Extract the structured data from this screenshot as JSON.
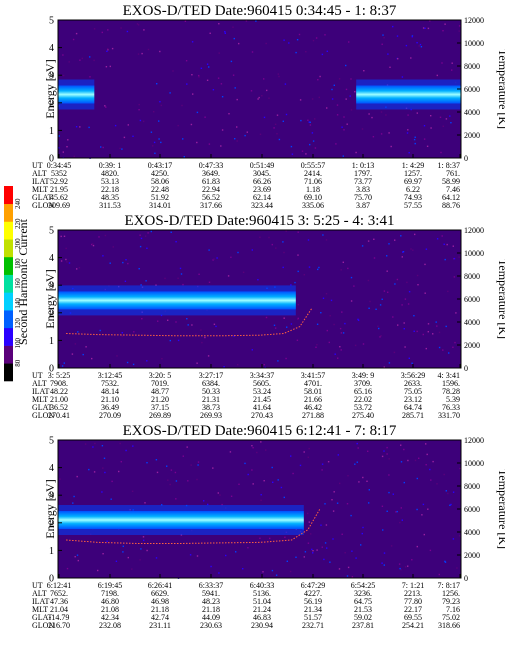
{
  "colorbar": {
    "label": "Second Harmonic Current",
    "ticks": [
      "80",
      "100",
      "120",
      "140",
      "160",
      "180",
      "200",
      "220",
      "240"
    ],
    "colors": [
      "#000000",
      "#5a007a",
      "#2a00ff",
      "#0060ff",
      "#00d0ff",
      "#00e0a0",
      "#00c000",
      "#c0e000",
      "#ffff00",
      "#ffa000",
      "#ff0000"
    ]
  },
  "chart_data": [
    {
      "type": "heatmap",
      "title": "EXOS-D/TED   Date:960415   0:34:45 - 1: 8:37",
      "ylabel": "Energy [eV]",
      "y2label": "Temperature [K]",
      "ylim": [
        0,
        5
      ],
      "y2lim": [
        0,
        12000
      ],
      "yticks": [
        "0",
        "1",
        "2",
        "3",
        "4",
        "5"
      ],
      "y2ticks": [
        "0",
        "2000",
        "4000",
        "6000",
        "8000",
        "10000",
        "12000"
      ],
      "band_energy": 2.3,
      "band_ranges": [
        [
          0.0,
          0.09
        ],
        [
          0.74,
          1.0
        ]
      ],
      "table": {
        "row_labels": [
          "UT",
          "ALT",
          "ILAT",
          "MLT",
          "GLAT",
          "GLON"
        ],
        "columns": [
          [
            "0:34:45",
            "5352",
            "52.92",
            "21.95",
            "45.62",
            "309.69"
          ],
          [
            "0:39: 1",
            "4820.",
            "53.13",
            "22.18",
            "48.35",
            "311.53"
          ],
          [
            "0:43:17",
            "4250.",
            "58.06",
            "22.48",
            "51.92",
            "314.01"
          ],
          [
            "0:47:33",
            "3649.",
            "61.83",
            "22.94",
            "56.52",
            "317.66"
          ],
          [
            "0:51:49",
            "3045.",
            "66.26",
            "23.69",
            "62.14",
            "323.44"
          ],
          [
            "0:55:57",
            "2414.",
            "71.06",
            "1.18",
            "69.10",
            "335.06"
          ],
          [
            "1: 0:13",
            "1797.",
            "73.77",
            "3.83",
            "75.70",
            "3.87"
          ],
          [
            "1: 4:29",
            "1257.",
            "69.97",
            "6.22",
            "74.93",
            "57.55"
          ],
          [
            "1: 8:37",
            "761.",
            "58.99",
            "7.46",
            "64.12",
            "88.76"
          ]
        ]
      }
    },
    {
      "type": "heatmap",
      "title": "EXOS-D/TED   Date:960415   3: 5:25 - 4: 3:41",
      "ylabel": "Energy [eV]",
      "y2label": "Temperature [K]",
      "ylim": [
        0,
        5
      ],
      "y2lim": [
        0,
        12000
      ],
      "yticks": [
        "0",
        "1",
        "2",
        "3",
        "4",
        "5"
      ],
      "y2ticks": [
        "0",
        "2000",
        "4000",
        "6000",
        "8000",
        "10000",
        "12000"
      ],
      "band_energy": 2.45,
      "band_ranges": [
        [
          0.0,
          0.59
        ]
      ],
      "temperature_curve": {
        "x": [
          0.02,
          0.1,
          0.2,
          0.3,
          0.4,
          0.5,
          0.56,
          0.6,
          0.63
        ],
        "temperature": [
          3000,
          2900,
          2850,
          2800,
          2800,
          2850,
          3000,
          3600,
          5200
        ]
      },
      "table": {
        "row_labels": [
          "UT",
          "ALT",
          "ILAT",
          "MLT",
          "GLAT",
          "GLON"
        ],
        "columns": [
          [
            "3: 5:25",
            "7908.",
            "48.22",
            "21.00",
            "36.52",
            "270.41"
          ],
          [
            "3:12:45",
            "7532.",
            "48.14",
            "21.10",
            "36.49",
            "270.09"
          ],
          [
            "3:20: 5",
            "7019.",
            "48.77",
            "21.20",
            "37.15",
            "269.89"
          ],
          [
            "3:27:17",
            "6384.",
            "50.33",
            "21.31",
            "38.73",
            "269.93"
          ],
          [
            "3:34:37",
            "5605.",
            "53.24",
            "21.45",
            "41.64",
            "270.43"
          ],
          [
            "3:41:57",
            "4701.",
            "58.01",
            "21.66",
            "46.42",
            "271.88"
          ],
          [
            "3:49: 9",
            "3709.",
            "65.16",
            "22.02",
            "53.72",
            "275.40"
          ],
          [
            "3:56:29",
            "2633.",
            "75.05",
            "23.12",
            "64.74",
            "285.71"
          ],
          [
            "4: 3:41",
            "1596.",
            "78.28",
            "5.39",
            "76.33",
            "331.70"
          ]
        ]
      }
    },
    {
      "type": "heatmap",
      "title": "EXOS-D/TED   Date:960415   6:12:41 - 7: 8:17",
      "ylabel": "Energy [eV]",
      "y2label": "Temperature [K]",
      "ylim": [
        0,
        5
      ],
      "y2lim": [
        0,
        12000
      ],
      "yticks": [
        "0",
        "1",
        "2",
        "3",
        "4",
        "5"
      ],
      "y2ticks": [
        "0",
        "2000",
        "4000",
        "6000",
        "8000",
        "10000",
        "12000"
      ],
      "band_energy": 2.1,
      "band_ranges": [
        [
          0.0,
          0.61
        ]
      ],
      "temperature_curve": {
        "x": [
          0.02,
          0.1,
          0.2,
          0.3,
          0.4,
          0.5,
          0.58,
          0.62,
          0.65
        ],
        "temperature": [
          3300,
          3100,
          3000,
          3000,
          3050,
          3100,
          3300,
          4200,
          6000
        ]
      },
      "table": {
        "row_labels": [
          "UT",
          "ALT",
          "ILAT",
          "MLT",
          "GLAT",
          "GLON"
        ],
        "columns": [
          [
            "6:12:41",
            "7652.",
            "47.36",
            "21.04",
            "-14.79",
            "216.70"
          ],
          [
            "6:19:45",
            "7198.",
            "46.80",
            "21.08",
            "42.34",
            "232.08"
          ],
          [
            "6:26:41",
            "6629.",
            "46.98",
            "21.18",
            "42.74",
            "231.11"
          ],
          [
            "6:33:37",
            "5941.",
            "48.23",
            "21.18",
            "44.09",
            "230.63"
          ],
          [
            "6:40:33",
            "5136.",
            "51.04",
            "21.24",
            "46.83",
            "230.94"
          ],
          [
            "6:47:29",
            "4227.",
            "56.19",
            "21.34",
            "51.57",
            "232.71"
          ],
          [
            "6:54:25",
            "3236.",
            "64.75",
            "21.53",
            "59.02",
            "237.81"
          ],
          [
            "7: 1:21",
            "2213.",
            "77.80",
            "22.17",
            "69.55",
            "254.21"
          ],
          [
            "7: 8:17",
            "1256.",
            "79.23",
            "7.16",
            "75.02",
            "318.66"
          ]
        ]
      }
    }
  ]
}
